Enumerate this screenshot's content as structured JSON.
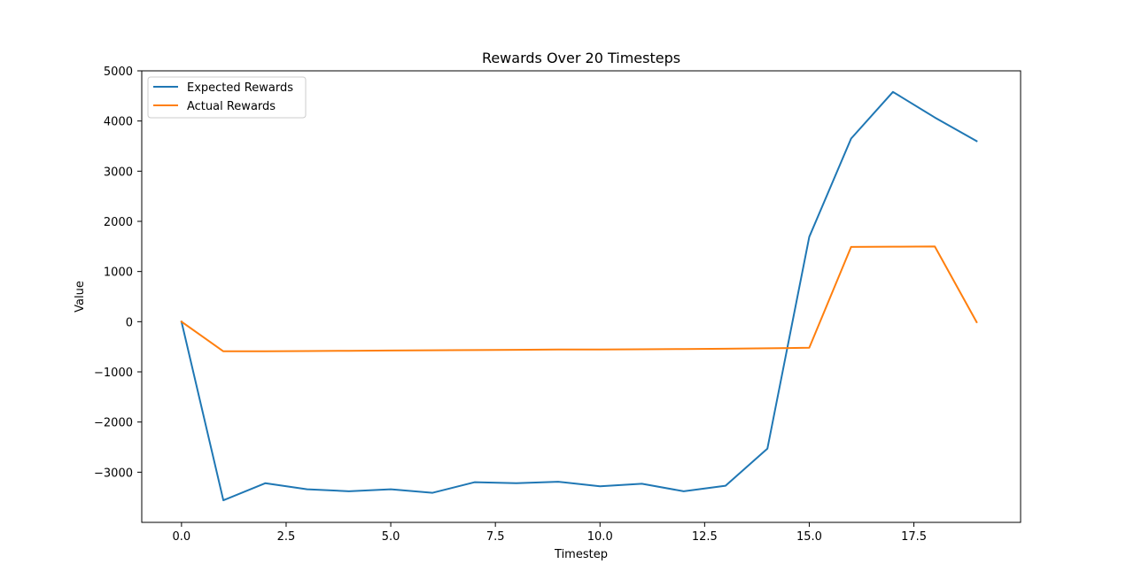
{
  "chart_data": {
    "type": "line",
    "title": "Rewards Over 20 Timesteps",
    "xlabel": "Timestep",
    "ylabel": "Value",
    "xlim": [
      -0.95,
      20.05
    ],
    "ylim": [
      -4000,
      5000
    ],
    "x_ticks": [
      0.0,
      2.5,
      5.0,
      7.5,
      10.0,
      12.5,
      15.0,
      17.5
    ],
    "x_tick_labels": [
      "0.0",
      "2.5",
      "5.0",
      "7.5",
      "10.0",
      "12.5",
      "15.0",
      "17.5"
    ],
    "y_ticks": [
      -3000,
      -2000,
      -1000,
      0,
      1000,
      2000,
      3000,
      4000,
      5000
    ],
    "y_tick_labels": [
      "−3000",
      "−2000",
      "−1000",
      "0",
      "1000",
      "2000",
      "3000",
      "4000",
      "5000"
    ],
    "grid": false,
    "legend_position": "top-left",
    "x": [
      0,
      1,
      2,
      3,
      4,
      5,
      6,
      7,
      8,
      9,
      10,
      11,
      12,
      13,
      14,
      15,
      16,
      17,
      18,
      19
    ],
    "series": [
      {
        "name": "Expected Rewards",
        "color": "#1f77b4",
        "values": [
          0,
          -3560,
          -3220,
          -3340,
          -3380,
          -3340,
          -3410,
          -3200,
          -3220,
          -3190,
          -3280,
          -3230,
          -3380,
          -3270,
          -2530,
          1690,
          3650,
          4580,
          4070,
          3600
        ]
      },
      {
        "name": "Actual Rewards",
        "color": "#ff7f0e",
        "values": [
          0,
          -590,
          -590,
          -585,
          -580,
          -575,
          -570,
          -565,
          -560,
          -555,
          -555,
          -550,
          -545,
          -540,
          -530,
          -520,
          1490,
          1495,
          1500,
          -10
        ]
      }
    ]
  }
}
